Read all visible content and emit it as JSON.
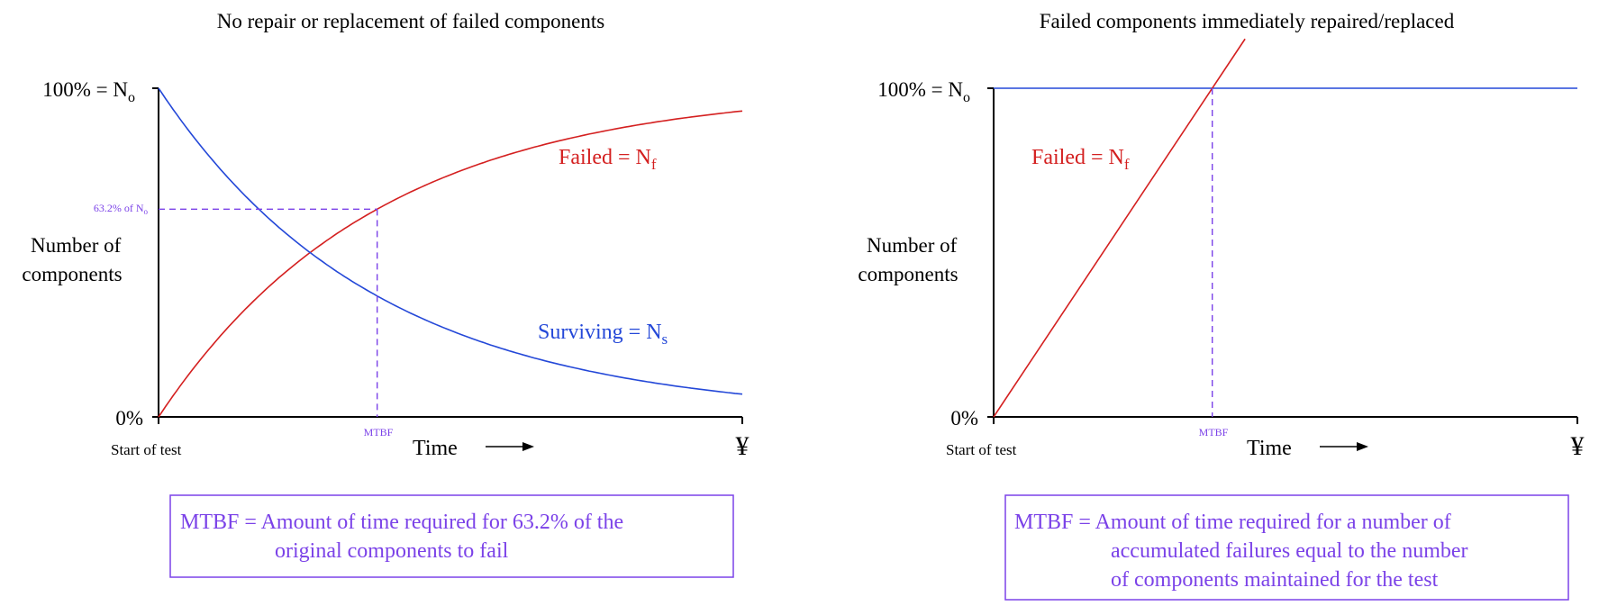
{
  "colors": {
    "axis": "#000000",
    "failed": "#d42020",
    "surviving": "#2448d8",
    "annotation": "#7b42e8"
  },
  "chart_data": [
    {
      "type": "line",
      "title": "No repair or replacement of failed components",
      "ylabel_lines": [
        "Number of",
        "components"
      ],
      "y_top_label": "100% = N",
      "y_top_sub": "o",
      "y_bottom_label": "0%",
      "xlabel": "Time",
      "x_start_label": "Start of test",
      "x_end_label": "¥",
      "x_marker_label": "MTBF",
      "y_marker_label": "63.2% of N",
      "y_marker_sub": "o",
      "xlim": [
        0,
        2.67
      ],
      "ylim": [
        0,
        100
      ],
      "mtbf_x": 1.0,
      "mtbf_y": 63.2,
      "series": [
        {
          "name": "Failed = N",
          "sub": "f",
          "kind": "failed",
          "function": "100*(1-exp(-x))"
        },
        {
          "name": "Surviving = N",
          "sub": "s",
          "kind": "surviving",
          "function": "100*exp(-x)"
        }
      ],
      "definition_lines": [
        "MTBF = Amount of time required for 63.2% of the",
        "original components to fail"
      ]
    },
    {
      "type": "line",
      "title": "Failed components immediately repaired/replaced",
      "ylabel_lines": [
        "Number of",
        "components"
      ],
      "y_top_label": "100% = N",
      "y_top_sub": "o",
      "y_bottom_label": "0%",
      "xlabel": "Time",
      "x_start_label": "Start of test",
      "x_end_label": "¥",
      "x_marker_label": "MTBF",
      "xlim": [
        0,
        2.67
      ],
      "ylim": [
        0,
        100
      ],
      "mtbf_x": 1.0,
      "series": [
        {
          "name": "Failed = N",
          "sub": "f",
          "kind": "failed",
          "function": "100*x"
        },
        {
          "name": "",
          "kind": "surviving",
          "function": "100"
        }
      ],
      "definition_lines": [
        "MTBF = Amount of time required for a number of",
        "accumulated failures equal to the number",
        "of components maintained for the test"
      ]
    }
  ]
}
